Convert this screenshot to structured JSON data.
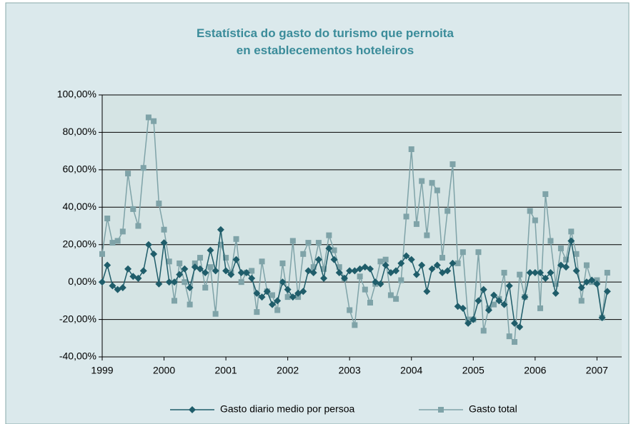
{
  "chart_data": {
    "type": "line",
    "title": "Estatística do gasto do turismo que pernoita en establecementos hoteleiros",
    "x": [
      1999,
      1999.083,
      1999.167,
      1999.25,
      1999.333,
      1999.417,
      1999.5,
      1999.583,
      1999.667,
      1999.75,
      1999.833,
      1999.917,
      2000,
      2000.083,
      2000.167,
      2000.25,
      2000.333,
      2000.417,
      2000.5,
      2000.583,
      2000.667,
      2000.75,
      2000.833,
      2000.917,
      2001,
      2001.083,
      2001.167,
      2001.25,
      2001.333,
      2001.417,
      2001.5,
      2001.583,
      2001.667,
      2001.75,
      2001.833,
      2001.917,
      2002,
      2002.083,
      2002.167,
      2002.25,
      2002.333,
      2002.417,
      2002.5,
      2002.583,
      2002.667,
      2002.75,
      2002.833,
      2002.917,
      2003,
      2003.083,
      2003.167,
      2003.25,
      2003.333,
      2003.417,
      2003.5,
      2003.583,
      2003.667,
      2003.75,
      2003.833,
      2003.917,
      2004,
      2004.083,
      2004.167,
      2004.25,
      2004.333,
      2004.417,
      2004.5,
      2004.583,
      2004.667,
      2004.75,
      2004.833,
      2004.917,
      2005,
      2005.083,
      2005.167,
      2005.25,
      2005.333,
      2005.417,
      2005.5,
      2005.583,
      2005.667,
      2005.75,
      2005.833,
      2005.917,
      2006,
      2006.083,
      2006.167,
      2006.25,
      2006.333,
      2006.417,
      2006.5,
      2006.583,
      2006.667,
      2006.75,
      2006.833,
      2006.917,
      2007,
      2007.083,
      2007.167
    ],
    "series": [
      {
        "name": "Gasto diario medio por persoa",
        "color": "#1f5d6a",
        "marker": "diamond",
        "values": [
          0,
          9,
          -2,
          -4,
          -3,
          7,
          3,
          2,
          6,
          20,
          15,
          -1,
          21,
          0,
          0,
          4,
          7,
          -3,
          8,
          7,
          5,
          17,
          6,
          28,
          6,
          4,
          12,
          5,
          5,
          2,
          -6,
          -8,
          -5,
          -12,
          -10,
          0,
          -4,
          -8,
          -6,
          -5,
          6,
          5,
          12,
          2,
          18,
          12,
          5,
          2,
          6,
          6,
          7,
          8,
          7,
          0,
          -1,
          9,
          5,
          6,
          10,
          14,
          12,
          4,
          9,
          -5,
          7,
          9,
          5,
          6,
          10,
          -13,
          -14,
          -22,
          -20,
          -10,
          -4,
          -15,
          -7,
          -10,
          -12,
          -2,
          -22,
          -24,
          -8,
          5,
          5,
          5,
          2,
          5,
          -6,
          9,
          8,
          22,
          6,
          -3,
          0,
          1,
          -1,
          -19,
          -5
        ]
      },
      {
        "name": "Gasto total",
        "color": "#7fa3a8",
        "marker": "square",
        "values": [
          15,
          34,
          21,
          22,
          27,
          58,
          39,
          30,
          61,
          88,
          86,
          42,
          28,
          11,
          -10,
          10,
          0,
          -12,
          10,
          13,
          -3,
          8,
          -17,
          20,
          13,
          5,
          23,
          0,
          5,
          6,
          -16,
          11,
          -5,
          -7,
          -15,
          10,
          -8,
          22,
          -8,
          15,
          21,
          8,
          21,
          7,
          25,
          17,
          8,
          2,
          -15,
          -23,
          3,
          -4,
          -11,
          -1,
          11,
          12,
          -7,
          -9,
          1,
          35,
          71,
          31,
          54,
          25,
          53,
          49,
          13,
          38,
          63,
          10,
          16,
          -20,
          -20,
          16,
          -26,
          -14,
          -12,
          -9,
          5,
          -29,
          -32,
          4,
          -8,
          38,
          33,
          -14,
          47,
          22,
          -1,
          18,
          12,
          27,
          15,
          -10,
          9,
          0,
          1,
          -19,
          5
        ]
      }
    ],
    "xlim": [
      1999,
      2007.4
    ],
    "xticks": [
      1999,
      2000,
      2001,
      2002,
      2003,
      2004,
      2005,
      2006,
      2007
    ],
    "ylim": [
      -40,
      100
    ],
    "yticks": [
      {
        "value": -40,
        "label": "-40,00%"
      },
      {
        "value": -20,
        "label": "-20,00%"
      },
      {
        "value": 0,
        "label": "0,00%"
      },
      {
        "value": 20,
        "label": "20,00%"
      },
      {
        "value": 40,
        "label": "40,00%"
      },
      {
        "value": 60,
        "label": "60,00%"
      },
      {
        "value": 80,
        "label": "80,00%"
      },
      {
        "value": 100,
        "label": "100,00%"
      }
    ],
    "grid": true,
    "legend": "bottom"
  }
}
